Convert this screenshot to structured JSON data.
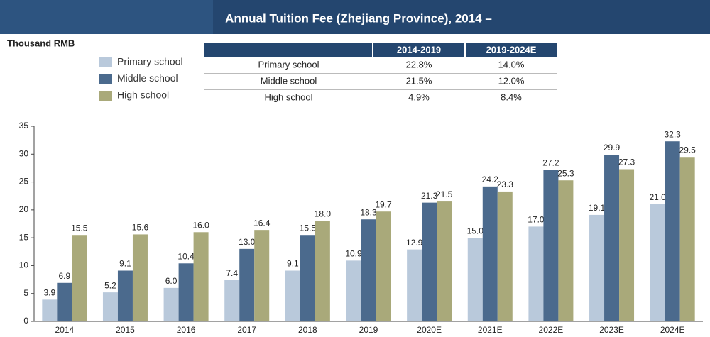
{
  "chart_data": {
    "type": "bar",
    "title": "Annual Tuition Fee (Zhejiang Province), 2014 –",
    "y_label": "Thousand RMB",
    "categories": [
      "2014",
      "2015",
      "2016",
      "2017",
      "2018",
      "2019",
      "2020E",
      "2021E",
      "2022E",
      "2023E",
      "2024E"
    ],
    "series": [
      {
        "name": "Primary school",
        "color": "#b9c9db",
        "values": [
          3.9,
          5.2,
          6.0,
          7.4,
          9.1,
          10.9,
          12.9,
          15.0,
          17.0,
          19.1,
          21.0
        ],
        "value_labels": [
          "3.9",
          "5.2",
          "6.0",
          "7.4",
          "9.1",
          "10.9",
          "12.9",
          "15.0",
          "17.0",
          "19.1",
          "21.0"
        ]
      },
      {
        "name": "Middle school",
        "color": "#4b6a8d",
        "values": [
          6.9,
          9.1,
          10.4,
          13.0,
          15.5,
          18.3,
          21.3,
          24.2,
          27.2,
          29.9,
          32.3
        ],
        "value_labels": [
          "6.9",
          "9.1",
          "10.4",
          "13.0",
          "15.5",
          "18.3",
          "21.3",
          "24.2",
          "27.2",
          "29.9",
          "32.3"
        ]
      },
      {
        "name": "High school",
        "color": "#a9a97a",
        "values": [
          15.5,
          15.6,
          16.0,
          16.4,
          18.0,
          19.7,
          21.5,
          23.3,
          25.3,
          27.3,
          29.5
        ],
        "value_labels": [
          "15.5",
          "15.6",
          "16.0",
          "16.4",
          "18.0",
          "19.7",
          "21.5",
          "23.3",
          "25.3",
          "27.3",
          "29.5"
        ]
      }
    ],
    "ylim": [
      0,
      35
    ],
    "yticks": [
      0,
      5,
      10,
      15,
      20,
      25,
      30,
      35
    ],
    "grid": false,
    "legend": "top-left"
  },
  "table": {
    "columns": [
      "2014-2019",
      "2019-2024E"
    ],
    "rows": [
      {
        "label": "Primary school",
        "cells": [
          "22.8%",
          "14.0%"
        ]
      },
      {
        "label": "Middle school",
        "cells": [
          "21.5%",
          "12.0%"
        ]
      },
      {
        "label": "High school",
        "cells": [
          "4.9%",
          "8.4%"
        ]
      }
    ]
  }
}
